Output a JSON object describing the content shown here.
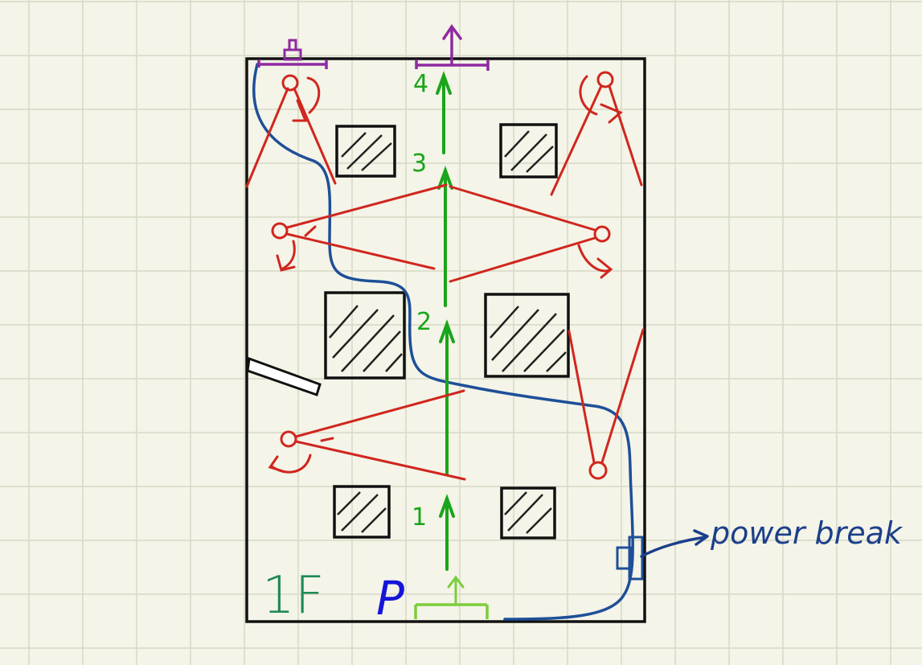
{
  "sketch": {
    "floor_label": "1F",
    "player_marker": "P",
    "power_label": "power break",
    "waypoints": [
      "1",
      "2",
      "3",
      "4"
    ]
  },
  "colors": {
    "background": "#f4f4e8",
    "grid_line": "#d6dac6",
    "room_outline": "#111111",
    "pillar_outline": "#111111",
    "hatch": "#222222",
    "guard_red": "#d0261e",
    "route_green": "#1aa51a",
    "entry_green": "#7ccd3c",
    "exit_purple": "#8e2aa0",
    "cable_blue": "#1e4f98",
    "floor_label_green": "#1e8a56",
    "player_blue": "#1515d8",
    "power_text_blue": "#1b3f8a"
  },
  "icons": {
    "exit_arrow": "up-arrow-icon",
    "alarm": "alarm-icon",
    "entry_arrow": "up-arrow-icon"
  }
}
